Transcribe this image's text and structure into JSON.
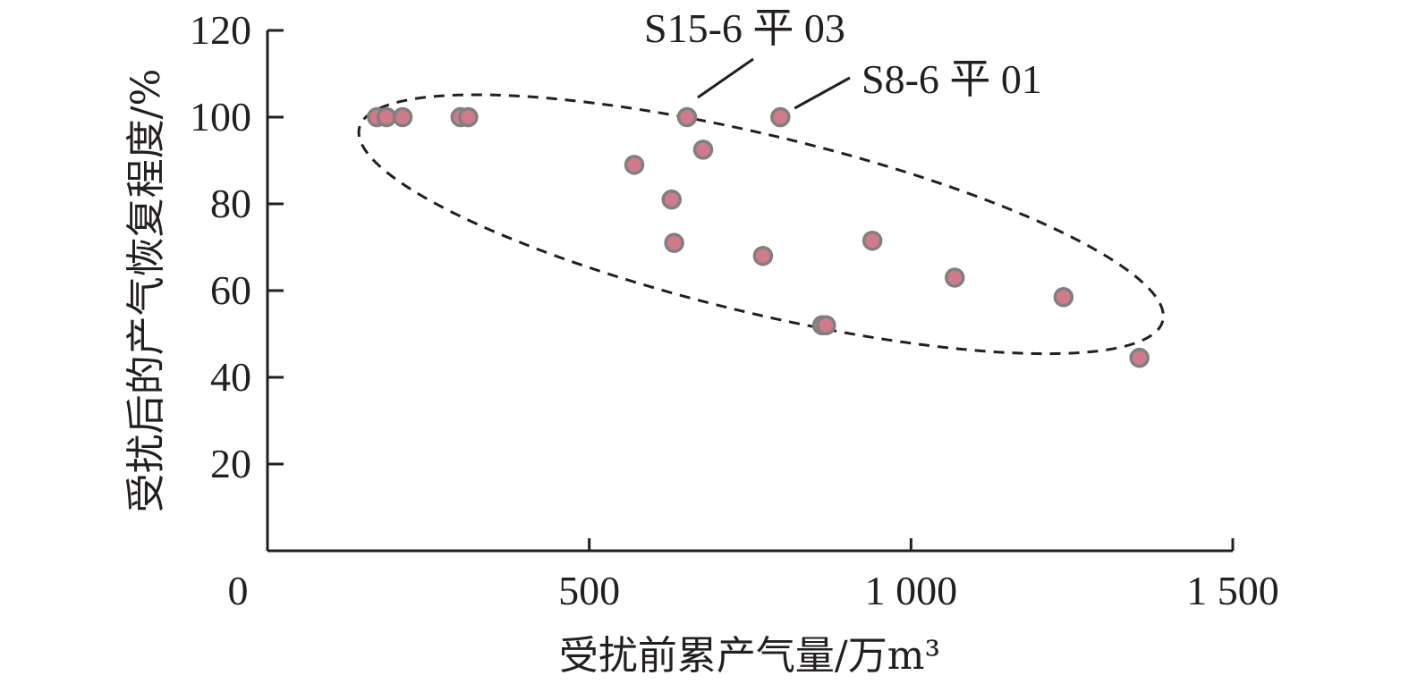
{
  "chart_data": {
    "type": "scatter",
    "title": "",
    "xlabel": "受扰前累产气量/万m³",
    "ylabel": "受扰后的产气恢复程度/%",
    "xlim": [
      0,
      1500
    ],
    "ylim": [
      0,
      120
    ],
    "xticks": [
      0,
      500,
      1000,
      1500
    ],
    "xtick_labels": [
      "0",
      "500",
      "1 000",
      "1 500"
    ],
    "yticks": [
      20,
      40,
      60,
      80,
      100,
      120
    ],
    "ytick_labels": [
      "20",
      "40",
      "60",
      "80",
      "100",
      "120"
    ],
    "grid": false,
    "marker_color": "#d07a8a",
    "marker_edge_color": "#808080",
    "points": [
      {
        "x": 170,
        "y": 100
      },
      {
        "x": 185,
        "y": 100
      },
      {
        "x": 210,
        "y": 100
      },
      {
        "x": 300,
        "y": 100
      },
      {
        "x": 312,
        "y": 100
      },
      {
        "x": 570,
        "y": 89
      },
      {
        "x": 628,
        "y": 81
      },
      {
        "x": 632,
        "y": 71
      },
      {
        "x": 652,
        "y": 100
      },
      {
        "x": 677,
        "y": 92.5
      },
      {
        "x": 770,
        "y": 68
      },
      {
        "x": 797,
        "y": 100
      },
      {
        "x": 862,
        "y": 52
      },
      {
        "x": 868,
        "y": 52
      },
      {
        "x": 940,
        "y": 71.5
      },
      {
        "x": 1068,
        "y": 63
      },
      {
        "x": 1237,
        "y": 58.5
      },
      {
        "x": 1355,
        "y": 44.5
      }
    ],
    "annotations": [
      {
        "text": "S15-6 平 03",
        "x": 652,
        "y": 100
      },
      {
        "text": "S8-6 平 01",
        "x": 797,
        "y": 100
      }
    ],
    "ellipse": {
      "cx": 767,
      "cy": 75.3,
      "rx": 642,
      "ry": 20.5,
      "angle_deg": 13.5,
      "style": "dashed"
    }
  }
}
